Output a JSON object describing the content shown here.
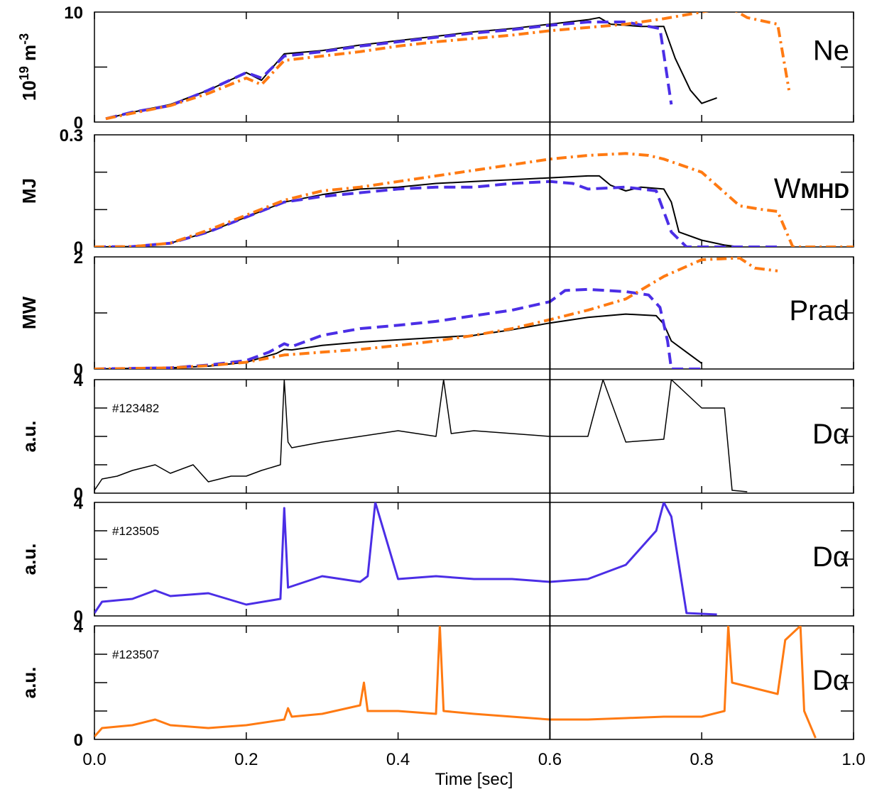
{
  "chart_data": {
    "type": "line",
    "xlabel": "Time [sec]",
    "xlim": [
      0.0,
      1.0
    ],
    "x_ticks": [
      "0.0",
      "0.2",
      "0.4",
      "0.6",
      "0.8",
      "1.0"
    ],
    "x_tick_values": [
      0.0,
      0.2,
      0.4,
      0.6,
      0.8,
      1.0
    ],
    "vertical_marker_x": 0.6,
    "colors": {
      "black": "#000000",
      "blue": "#4b2ee6",
      "orange": "#ff7a12"
    },
    "panels": [
      {
        "id": "ne",
        "label": "Ne",
        "ylabel_text": "10",
        "ylabel_sup": "19",
        "ylabel_unit": " m",
        "ylabel_unit_sup": "-3",
        "ylim": [
          0,
          10
        ],
        "yticks": [
          {
            "value": 0,
            "label": "0"
          },
          {
            "value": 10,
            "label": "10"
          }
        ],
        "minor_yticks": [
          5
        ],
        "series": [
          {
            "color": "black",
            "style": "solid",
            "width": 2,
            "x": [
              0.015,
              0.05,
              0.1,
              0.15,
              0.2,
              0.22,
              0.25,
              0.3,
              0.35,
              0.4,
              0.45,
              0.5,
              0.55,
              0.6,
              0.65,
              0.665,
              0.68,
              0.72,
              0.75,
              0.765,
              0.785,
              0.8,
              0.82
            ],
            "y": [
              0.3,
              0.9,
              1.6,
              2.9,
              4.5,
              3.8,
              6.2,
              6.5,
              7.0,
              7.4,
              7.8,
              8.2,
              8.5,
              8.9,
              9.3,
              9.5,
              8.9,
              8.7,
              8.7,
              5.8,
              2.9,
              1.7,
              2.2
            ]
          },
          {
            "color": "blue",
            "style": "dash",
            "width": 4,
            "x": [
              0.015,
              0.05,
              0.1,
              0.15,
              0.2,
              0.22,
              0.25,
              0.3,
              0.35,
              0.4,
              0.45,
              0.5,
              0.55,
              0.6,
              0.65,
              0.7,
              0.745,
              0.76
            ],
            "y": [
              0.3,
              0.9,
              1.5,
              2.9,
              4.5,
              4.0,
              6.0,
              6.4,
              6.9,
              7.3,
              7.7,
              8.1,
              8.4,
              8.8,
              9.1,
              9.1,
              8.5,
              1.6
            ]
          },
          {
            "color": "orange",
            "style": "dashdot",
            "width": 4,
            "x": [
              0.015,
              0.05,
              0.1,
              0.15,
              0.2,
              0.22,
              0.25,
              0.3,
              0.35,
              0.4,
              0.45,
              0.5,
              0.55,
              0.6,
              0.65,
              0.7,
              0.75,
              0.8,
              0.835,
              0.86,
              0.9,
              0.915
            ],
            "y": [
              0.3,
              0.8,
              1.5,
              2.6,
              4.0,
              3.4,
              5.6,
              6.0,
              6.4,
              6.9,
              7.3,
              7.6,
              7.9,
              8.3,
              8.6,
              8.9,
              9.4,
              10.0,
              10.5,
              9.5,
              8.9,
              2.9
            ]
          }
        ]
      },
      {
        "id": "wmhd",
        "label": "W",
        "label_sub": "MHD",
        "ylabel_text": "MJ",
        "ylim": [
          0,
          0.3
        ],
        "yticks": [
          {
            "value": 0,
            "label": "0"
          },
          {
            "value": 0.3,
            "label": "0.3"
          }
        ],
        "minor_yticks": [
          0.2,
          0.1
        ],
        "series": [
          {
            "color": "black",
            "style": "solid",
            "width": 2,
            "x": [
              0.0,
              0.05,
              0.1,
              0.15,
              0.2,
              0.25,
              0.3,
              0.35,
              0.4,
              0.45,
              0.5,
              0.55,
              0.6,
              0.65,
              0.665,
              0.68,
              0.7,
              0.72,
              0.75,
              0.76,
              0.77,
              0.8,
              0.83,
              0.85
            ],
            "y": [
              0.0,
              0.001,
              0.01,
              0.04,
              0.08,
              0.12,
              0.14,
              0.155,
              0.16,
              0.17,
              0.175,
              0.18,
              0.185,
              0.19,
              0.19,
              0.165,
              0.15,
              0.16,
              0.155,
              0.12,
              0.04,
              0.018,
              0.005,
              0.0
            ]
          },
          {
            "color": "blue",
            "style": "dash",
            "width": 4,
            "x": [
              0.0,
              0.05,
              0.1,
              0.15,
              0.2,
              0.25,
              0.3,
              0.35,
              0.4,
              0.45,
              0.5,
              0.55,
              0.6,
              0.63,
              0.65,
              0.7,
              0.74,
              0.76,
              0.78,
              0.9
            ],
            "y": [
              0.0,
              0.001,
              0.01,
              0.04,
              0.08,
              0.12,
              0.135,
              0.145,
              0.155,
              0.16,
              0.16,
              0.17,
              0.175,
              0.17,
              0.155,
              0.16,
              0.15,
              0.04,
              0.0,
              0.0
            ]
          },
          {
            "color": "orange",
            "style": "dashdot",
            "width": 4,
            "x": [
              0.0,
              0.05,
              0.1,
              0.15,
              0.2,
              0.25,
              0.3,
              0.35,
              0.4,
              0.45,
              0.5,
              0.55,
              0.6,
              0.65,
              0.7,
              0.73,
              0.75,
              0.8,
              0.85,
              0.88,
              0.9,
              0.92,
              1.0
            ],
            "y": [
              0.0,
              0.001,
              0.01,
              0.045,
              0.085,
              0.125,
              0.15,
              0.16,
              0.175,
              0.19,
              0.205,
              0.22,
              0.235,
              0.245,
              0.25,
              0.245,
              0.235,
              0.2,
              0.11,
              0.1,
              0.095,
              0.0,
              0.0
            ]
          }
        ]
      },
      {
        "id": "prad",
        "label": "Prad",
        "ylabel_text": "MW",
        "ylim": [
          0,
          2
        ],
        "yticks": [
          {
            "value": 0,
            "label": "0"
          },
          {
            "value": 2,
            "label": "2"
          }
        ],
        "minor_yticks": [
          1
        ],
        "series": [
          {
            "color": "black",
            "style": "solid",
            "width": 2,
            "x": [
              0.0,
              0.1,
              0.15,
              0.2,
              0.22,
              0.24,
              0.25,
              0.26,
              0.3,
              0.35,
              0.4,
              0.45,
              0.5,
              0.55,
              0.6,
              0.65,
              0.7,
              0.74,
              0.75,
              0.76,
              0.78,
              0.8
            ],
            "y": [
              0.0,
              0.02,
              0.05,
              0.12,
              0.2,
              0.28,
              0.35,
              0.34,
              0.42,
              0.48,
              0.52,
              0.56,
              0.6,
              0.7,
              0.82,
              0.92,
              0.98,
              0.95,
              0.8,
              0.5,
              0.3,
              0.1
            ]
          },
          {
            "color": "blue",
            "style": "dash",
            "width": 4,
            "x": [
              0.0,
              0.1,
              0.15,
              0.2,
              0.23,
              0.25,
              0.26,
              0.3,
              0.35,
              0.4,
              0.45,
              0.5,
              0.55,
              0.6,
              0.62,
              0.65,
              0.7,
              0.73,
              0.745,
              0.755,
              0.76,
              0.8
            ],
            "y": [
              0.0,
              0.02,
              0.07,
              0.15,
              0.3,
              0.45,
              0.4,
              0.6,
              0.72,
              0.78,
              0.85,
              0.95,
              1.05,
              1.2,
              1.4,
              1.42,
              1.38,
              1.32,
              1.1,
              0.5,
              0.0,
              0.0
            ]
          },
          {
            "color": "orange",
            "style": "dashdot",
            "width": 4,
            "x": [
              0.0,
              0.1,
              0.15,
              0.2,
              0.25,
              0.3,
              0.35,
              0.4,
              0.45,
              0.5,
              0.55,
              0.6,
              0.65,
              0.7,
              0.75,
              0.8,
              0.85,
              0.87,
              0.9
            ],
            "y": [
              0.0,
              0.02,
              0.06,
              0.12,
              0.25,
              0.3,
              0.35,
              0.42,
              0.5,
              0.6,
              0.72,
              0.88,
              1.05,
              1.25,
              1.65,
              1.95,
              1.98,
              1.8,
              1.75
            ]
          }
        ]
      },
      {
        "id": "da1",
        "label": "Dα",
        "shot": "#123482",
        "ylabel_text": "a.u.",
        "ylim": [
          0,
          4
        ],
        "yticks": [
          {
            "value": 0,
            "label": "0"
          },
          {
            "value": 4,
            "label": "4"
          }
        ],
        "minor_yticks": [
          1,
          2,
          3
        ],
        "series": [
          {
            "color": "black",
            "style": "solid",
            "width": 1.5,
            "x": [
              0.0,
              0.01,
              0.03,
              0.05,
              0.08,
              0.1,
              0.13,
              0.15,
              0.18,
              0.2,
              0.22,
              0.245,
              0.25,
              0.255,
              0.26,
              0.3,
              0.35,
              0.4,
              0.45,
              0.46,
              0.47,
              0.5,
              0.55,
              0.6,
              0.65,
              0.67,
              0.7,
              0.75,
              0.76,
              0.8,
              0.83,
              0.84,
              0.86
            ],
            "y": [
              0.1,
              0.5,
              0.6,
              0.8,
              1.0,
              0.7,
              1.0,
              0.4,
              0.6,
              0.6,
              0.8,
              1.0,
              4.0,
              1.8,
              1.6,
              1.8,
              2.0,
              2.2,
              2.0,
              4.0,
              2.1,
              2.2,
              2.1,
              2.0,
              2.0,
              4.0,
              1.8,
              1.9,
              4.0,
              3.0,
              3.0,
              0.1,
              0.05
            ]
          }
        ]
      },
      {
        "id": "da2",
        "label": "Dα",
        "shot": "#123505",
        "ylabel_text": "a.u.",
        "ylim": [
          0,
          4
        ],
        "yticks": [
          {
            "value": 0,
            "label": "0"
          },
          {
            "value": 4,
            "label": "4"
          }
        ],
        "minor_yticks": [
          1,
          2,
          3
        ],
        "series": [
          {
            "color": "blue",
            "style": "solid",
            "width": 3,
            "x": [
              0.0,
              0.01,
              0.05,
              0.08,
              0.1,
              0.15,
              0.2,
              0.245,
              0.25,
              0.255,
              0.3,
              0.35,
              0.36,
              0.37,
              0.4,
              0.45,
              0.5,
              0.55,
              0.6,
              0.65,
              0.7,
              0.72,
              0.74,
              0.75,
              0.76,
              0.78,
              0.82
            ],
            "y": [
              0.1,
              0.5,
              0.6,
              0.9,
              0.7,
              0.8,
              0.4,
              0.6,
              3.8,
              1.0,
              1.4,
              1.2,
              1.4,
              4.0,
              1.3,
              1.4,
              1.3,
              1.3,
              1.2,
              1.3,
              1.8,
              2.4,
              3.0,
              4.0,
              3.5,
              0.1,
              0.05
            ]
          }
        ]
      },
      {
        "id": "da3",
        "label": "Dα",
        "shot": "#123507",
        "ylabel_text": "a.u.",
        "ylim": [
          0,
          4
        ],
        "yticks": [
          {
            "value": 0,
            "label": "0"
          },
          {
            "value": 4,
            "label": "4"
          }
        ],
        "minor_yticks": [
          1,
          2,
          3
        ],
        "series": [
          {
            "color": "orange",
            "style": "solid",
            "width": 3,
            "x": [
              0.0,
              0.01,
              0.05,
              0.08,
              0.1,
              0.15,
              0.2,
              0.25,
              0.255,
              0.26,
              0.3,
              0.35,
              0.355,
              0.36,
              0.4,
              0.45,
              0.455,
              0.46,
              0.5,
              0.55,
              0.6,
              0.65,
              0.7,
              0.75,
              0.8,
              0.83,
              0.835,
              0.84,
              0.87,
              0.9,
              0.91,
              0.93,
              0.935,
              0.95
            ],
            "y": [
              0.1,
              0.4,
              0.5,
              0.7,
              0.5,
              0.4,
              0.5,
              0.7,
              1.1,
              0.8,
              0.9,
              1.2,
              2.0,
              1.0,
              1.0,
              0.9,
              4.0,
              1.0,
              0.9,
              0.8,
              0.7,
              0.7,
              0.75,
              0.8,
              0.8,
              1.0,
              4.0,
              2.0,
              1.8,
              1.6,
              3.5,
              4.0,
              1.0,
              0.05
            ]
          }
        ]
      }
    ]
  }
}
